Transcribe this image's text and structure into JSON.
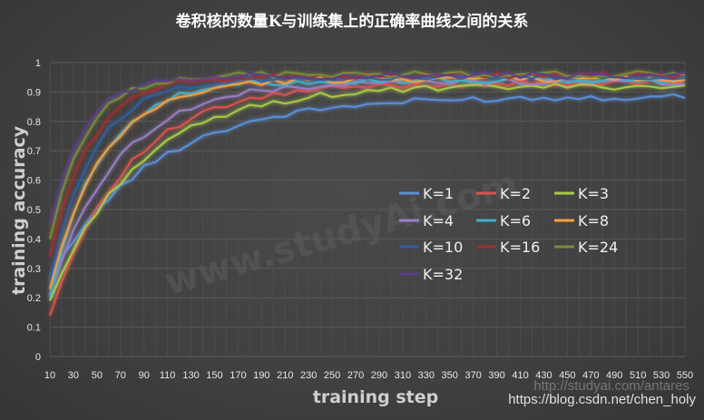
{
  "chart_data": {
    "type": "line",
    "title": "卷积核的数量K与训练集上的正确率曲线之间的关系",
    "xlabel": "training  step",
    "ylabel": "training  accuracy",
    "ylim": [
      0,
      1
    ],
    "yticks": [
      "0",
      "0.1",
      "0.2",
      "0.3",
      "0.4",
      "0.5",
      "0.6",
      "0.7",
      "0.8",
      "0.9",
      "1"
    ],
    "x": [
      10,
      20,
      30,
      40,
      50,
      60,
      70,
      80,
      90,
      100,
      110,
      120,
      130,
      140,
      150,
      160,
      170,
      180,
      190,
      200,
      210,
      220,
      230,
      240,
      250,
      260,
      270,
      280,
      290,
      300,
      310,
      320,
      330,
      340,
      350,
      360,
      370,
      380,
      390,
      400,
      410,
      420,
      430,
      440,
      450,
      460,
      470,
      480,
      490,
      500,
      510,
      520,
      530,
      540,
      550
    ],
    "xtick_labels": [
      "10",
      "30",
      "50",
      "70",
      "90",
      "110",
      "130",
      "150",
      "170",
      "190",
      "210",
      "230",
      "250",
      "270",
      "290",
      "310",
      "330",
      "350",
      "370",
      "390",
      "410",
      "430",
      "450",
      "470",
      "490",
      "510",
      "530",
      "550"
    ],
    "grid": true,
    "legend_position": "center-right",
    "series": [
      {
        "name": "K=1",
        "color": "#5b8fd9",
        "curve": {
          "start": 0.27,
          "end": 0.885,
          "rate": 0.115
        }
      },
      {
        "name": "K=2",
        "color": "#d9534f",
        "curve": {
          "start": 0.14,
          "end": 0.93,
          "rate": 0.155
        }
      },
      {
        "name": "K=3",
        "color": "#a9cc47",
        "curve": {
          "start": 0.19,
          "end": 0.92,
          "rate": 0.135
        }
      },
      {
        "name": "K=4",
        "color": "#9a7fc4",
        "curve": {
          "start": 0.21,
          "end": 0.935,
          "rate": 0.175
        }
      },
      {
        "name": "K=6",
        "color": "#3fb0c8",
        "curve": {
          "start": 0.2,
          "end": 0.94,
          "rate": 0.24
        }
      },
      {
        "name": "K=8",
        "color": "#f5a03c",
        "curve": {
          "start": 0.23,
          "end": 0.945,
          "rate": 0.22
        }
      },
      {
        "name": "K=10",
        "color": "#2f5f9e",
        "curve": {
          "start": 0.26,
          "end": 0.95,
          "rate": 0.27
        }
      },
      {
        "name": "K=16",
        "color": "#a0302e",
        "curve": {
          "start": 0.34,
          "end": 0.955,
          "rate": 0.29
        }
      },
      {
        "name": "K=24",
        "color": "#7a8b3a",
        "curve": {
          "start": 0.4,
          "end": 0.96,
          "rate": 0.33
        }
      },
      {
        "name": "K=32",
        "color": "#5a3f86",
        "curve": {
          "start": 0.45,
          "end": 0.955,
          "rate": 0.35
        }
      }
    ]
  },
  "watermark": "www.studyAi.com",
  "source_url": "https://blog.csdn.net/chen_holy",
  "source_url_faint": "http://studyai.com/antares"
}
